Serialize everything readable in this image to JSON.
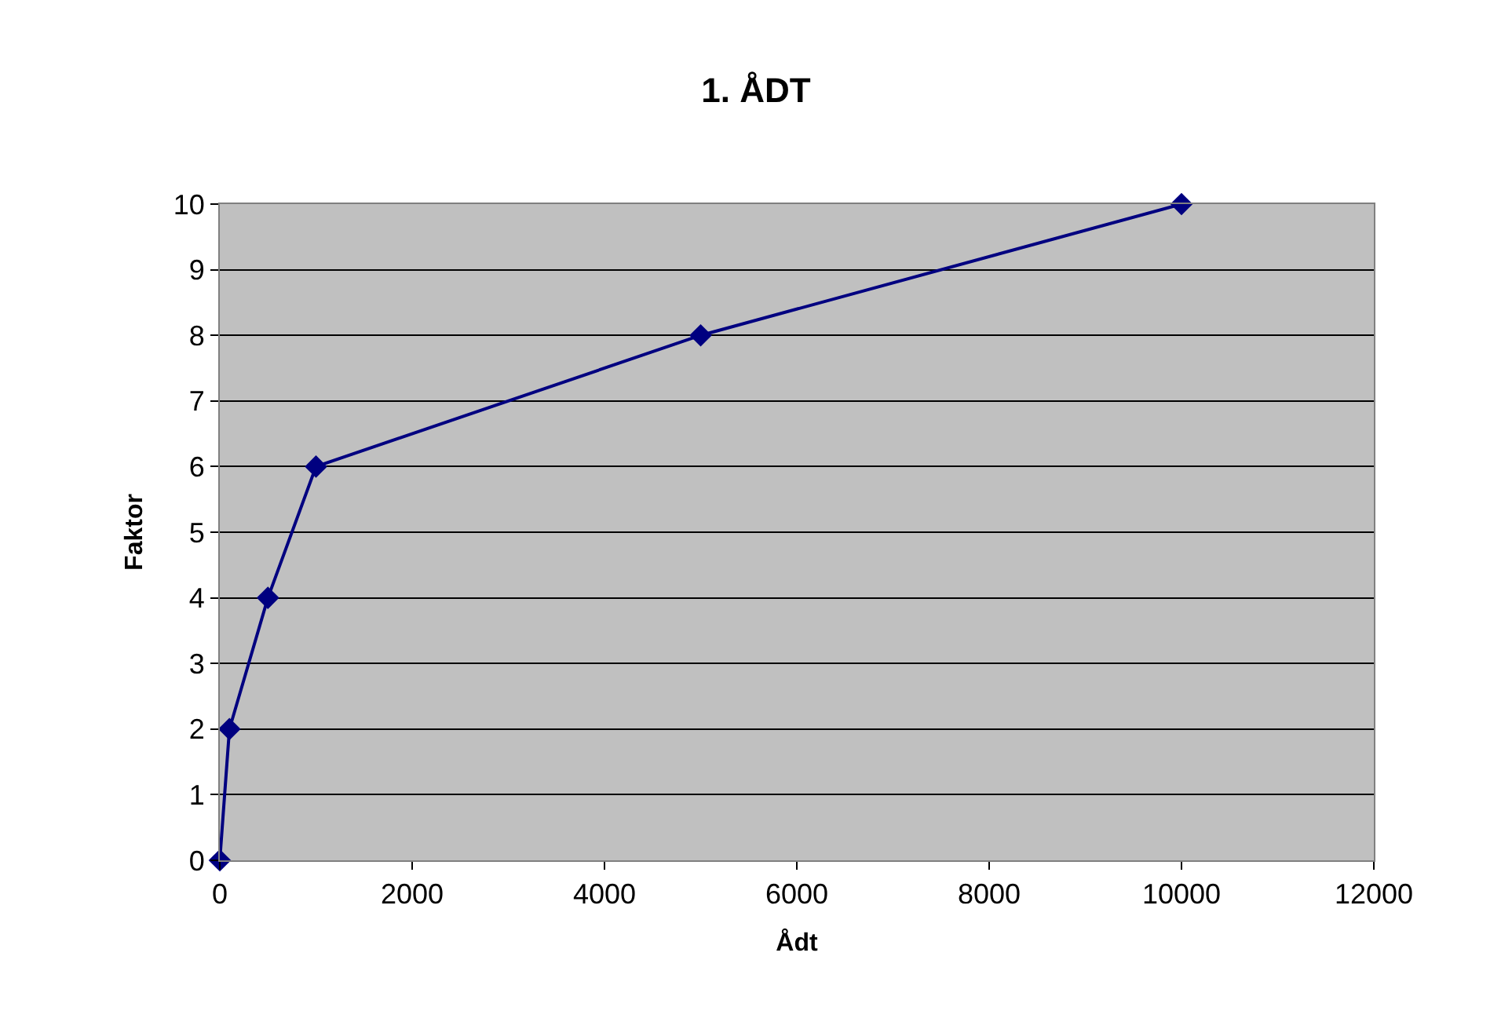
{
  "chart_data": {
    "type": "line",
    "title": "1. ÅDT",
    "xlabel": "Ådt",
    "ylabel": "Faktor",
    "x": [
      0,
      100,
      500,
      1000,
      5000,
      10000
    ],
    "series": [
      {
        "color": "#000080",
        "values": [
          0,
          2,
          4,
          6,
          8,
          10
        ]
      }
    ],
    "xlim": [
      0,
      12000
    ],
    "xticks": [
      0,
      2000,
      4000,
      6000,
      8000,
      10000,
      12000
    ],
    "ylim": [
      0,
      10
    ],
    "yticks": [
      0,
      1,
      2,
      3,
      4,
      5,
      6,
      7,
      8,
      9,
      10
    ],
    "grid": "y",
    "marker": "diamond",
    "line_style": "solid"
  }
}
